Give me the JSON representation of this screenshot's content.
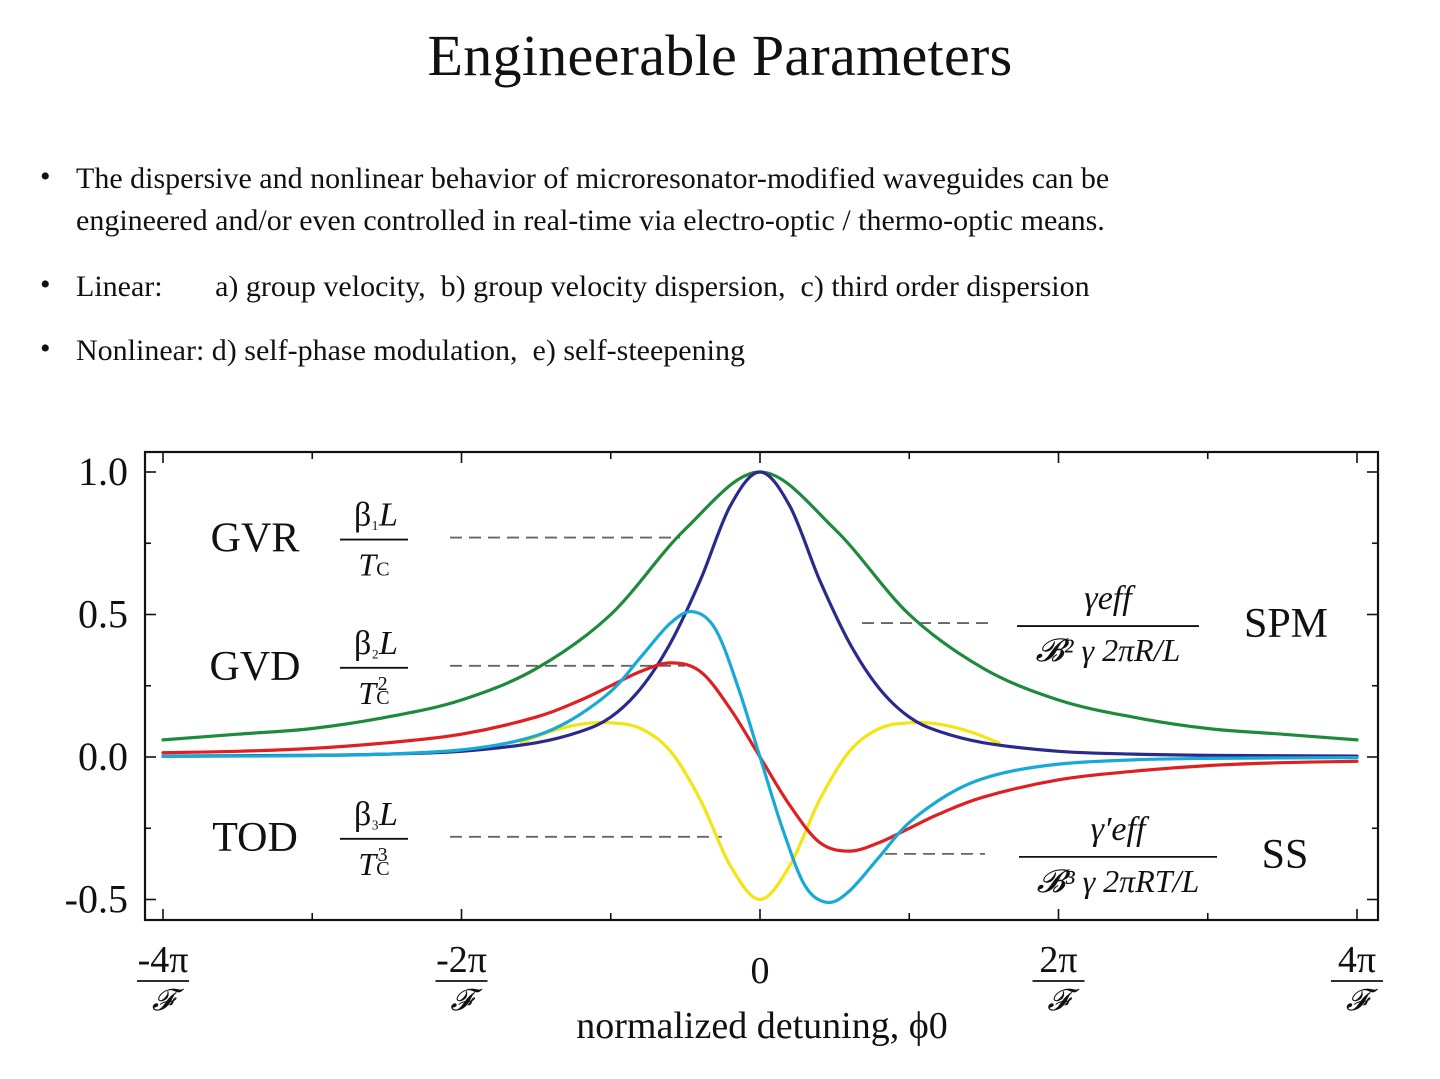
{
  "slide": {
    "title": "Engineerable Parameters",
    "bullets": [
      [
        "The dispersive and nonlinear behavior of microresonator-modified waveguides can be",
        "engineered and/or even controlled in real-time via electro-optic / thermo-optic means."
      ],
      [
        "Linear:       a) group velocity,  b) group velocity dispersion,  c) third order dispersion"
      ],
      [
        "Nonlinear: d) self-phase modulation,  e) self-steepening"
      ]
    ]
  },
  "chart_data": {
    "type": "line",
    "xlabel": "normalized detuning, ϕ0",
    "xlim": [
      -4,
      4
    ],
    "ylim": [
      -0.55,
      1.02
    ],
    "yticks": [
      1.0,
      0.5,
      0.0,
      -0.5
    ],
    "ytick_labels": [
      "1.0",
      "0.5",
      "0.0",
      "-0.5"
    ],
    "xticks": [
      -4,
      -2,
      0,
      2,
      4
    ],
    "xtick_labels": [
      {
        "num": "-4π",
        "den": "𝓕"
      },
      {
        "num": "-2π",
        "den": "𝓕"
      },
      {
        "num": "0",
        "den": ""
      },
      {
        "num": "2π",
        "den": "𝓕"
      },
      {
        "num": "4π",
        "den": "𝓕"
      }
    ],
    "x_unit_note": "x values in units of π/𝓕",
    "grid": false,
    "series": [
      {
        "color": "#1f8a3c",
        "x": [
          -4,
          -3.5,
          -3,
          -2.5,
          -2,
          -1.5,
          -1,
          -0.5,
          0,
          0.5,
          1,
          1.5,
          2,
          2.5,
          3,
          3.5,
          4
        ],
        "y": [
          0.06,
          0.08,
          0.1,
          0.14,
          0.2,
          0.31,
          0.5,
          0.8,
          1.0,
          0.8,
          0.5,
          0.31,
          0.2,
          0.14,
          0.1,
          0.08,
          0.06
        ]
      },
      {
        "color": "#2b2a8c",
        "x": [
          -4,
          -3,
          -2.5,
          -2,
          -1.5,
          -1.2,
          -1,
          -0.8,
          -0.6,
          -0.4,
          -0.2,
          0,
          0.2,
          0.4,
          0.6,
          0.8,
          1,
          1.2,
          1.5,
          2,
          2.5,
          3,
          4
        ],
        "y": [
          0.003,
          0.006,
          0.01,
          0.02,
          0.05,
          0.09,
          0.14,
          0.24,
          0.4,
          0.62,
          0.88,
          1.0,
          0.88,
          0.62,
          0.4,
          0.24,
          0.14,
          0.09,
          0.05,
          0.02,
          0.01,
          0.006,
          0.003
        ]
      },
      {
        "color": "#e02020",
        "x": [
          -4,
          -3.5,
          -3,
          -2.5,
          -2,
          -1.5,
          -1.2,
          -1,
          -0.8,
          -0.6,
          -0.4,
          -0.2,
          0,
          0.2,
          0.4,
          0.6,
          0.8,
          1,
          1.2,
          1.5,
          2,
          2.5,
          3,
          3.5,
          4
        ],
        "y": [
          0.015,
          0.02,
          0.03,
          0.05,
          0.08,
          0.14,
          0.2,
          0.25,
          0.3,
          0.33,
          0.3,
          0.17,
          0.0,
          -0.17,
          -0.3,
          -0.33,
          -0.3,
          -0.25,
          -0.2,
          -0.14,
          -0.08,
          -0.05,
          -0.03,
          -0.02,
          -0.015
        ]
      },
      {
        "color": "#19a9d6",
        "x": [
          -4,
          -3,
          -2.5,
          -2,
          -1.6,
          -1.3,
          -1,
          -0.8,
          -0.6,
          -0.45,
          -0.3,
          -0.15,
          0,
          0.15,
          0.3,
          0.45,
          0.6,
          0.8,
          1,
          1.3,
          1.6,
          2,
          2.5,
          3,
          4
        ],
        "y": [
          0.002,
          0.005,
          0.01,
          0.025,
          0.06,
          0.12,
          0.23,
          0.35,
          0.47,
          0.51,
          0.45,
          0.25,
          0.0,
          -0.25,
          -0.45,
          -0.51,
          -0.47,
          -0.35,
          -0.23,
          -0.12,
          -0.06,
          -0.025,
          -0.01,
          -0.005,
          -0.002
        ]
      },
      {
        "color": "#f2e512",
        "x": [
          -1.6,
          -1.4,
          -1.2,
          -1,
          -0.8,
          -0.6,
          -0.4,
          -0.2,
          0,
          0.2,
          0.4,
          0.6,
          0.8,
          1,
          1.2,
          1.4,
          1.6
        ],
        "y": [
          0.05,
          0.09,
          0.115,
          0.12,
          0.1,
          0.02,
          -0.15,
          -0.38,
          -0.5,
          -0.38,
          -0.15,
          0.02,
          0.1,
          0.12,
          0.115,
          0.09,
          0.05
        ]
      }
    ],
    "annotations": {
      "gvr": {
        "label": "GVR",
        "num": "β₁L",
        "den": "T_C",
        "y": 0.77
      },
      "gvd": {
        "label": "GVD",
        "num": "β₂L",
        "den": "T_C²",
        "y": 0.32
      },
      "tod": {
        "label": "TOD",
        "num": "β₃L",
        "den": "T_C³",
        "y": -0.28
      },
      "spm": {
        "label": "SPM",
        "num": "γeff",
        "den": "𝓑² γ 2πR/L",
        "y": 0.47
      },
      "ss": {
        "label": "SS",
        "num": "γ′eff",
        "den": "𝓑³ γ 2πRT/L",
        "y": -0.34
      }
    }
  }
}
